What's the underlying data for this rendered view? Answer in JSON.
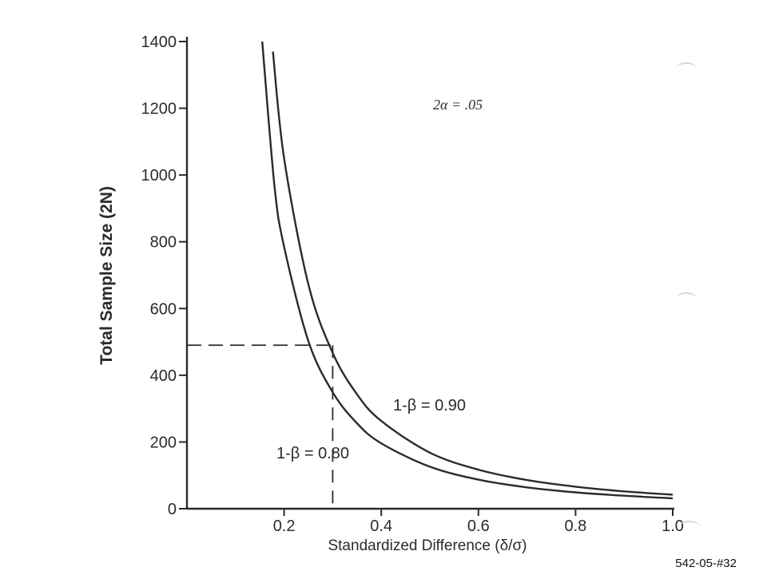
{
  "chart_data": {
    "type": "line",
    "xlabel": "Standardized Difference (δ/σ)",
    "ylabel": "Total Sample Size (2N)",
    "xlim": [
      0,
      1.0
    ],
    "ylim": [
      0,
      1400
    ],
    "x_ticks": [
      0.2,
      0.4,
      0.6,
      0.8,
      1.0
    ],
    "x_tick_labels": [
      "0.2",
      "0.4",
      "0.6",
      "0.8",
      "1.0"
    ],
    "y_ticks": [
      0,
      200,
      400,
      600,
      800,
      1000,
      1200,
      1400
    ],
    "y_tick_labels": [
      "0",
      "200",
      "400",
      "600",
      "800",
      "1000",
      "1200",
      "1400"
    ],
    "grid": false,
    "annotation": "2α = .05",
    "series": [
      {
        "name": "1-β = 0.80",
        "x": [
          0.155,
          0.18,
          0.2,
          0.25,
          0.3,
          0.35,
          0.4,
          0.5,
          0.6,
          0.7,
          0.8,
          0.9,
          1.0
        ],
        "y": [
          1400,
          970,
          785,
          502,
          349,
          256,
          196,
          126,
          87,
          64,
          49,
          39,
          31
        ]
      },
      {
        "name": "1-β = 0.90",
        "x": [
          0.177,
          0.2,
          0.25,
          0.3,
          0.35,
          0.4,
          0.5,
          0.6,
          0.7,
          0.8,
          0.9,
          1.0
        ],
        "y": [
          1370,
          1050,
          672,
          467,
          343,
          263,
          168,
          117,
          86,
          66,
          52,
          42
        ]
      }
    ],
    "reference_lines": {
      "x": 0.3,
      "y": 490
    },
    "color": "#2b2b2b"
  },
  "footer": {
    "slide_id": "542-05-#32"
  }
}
